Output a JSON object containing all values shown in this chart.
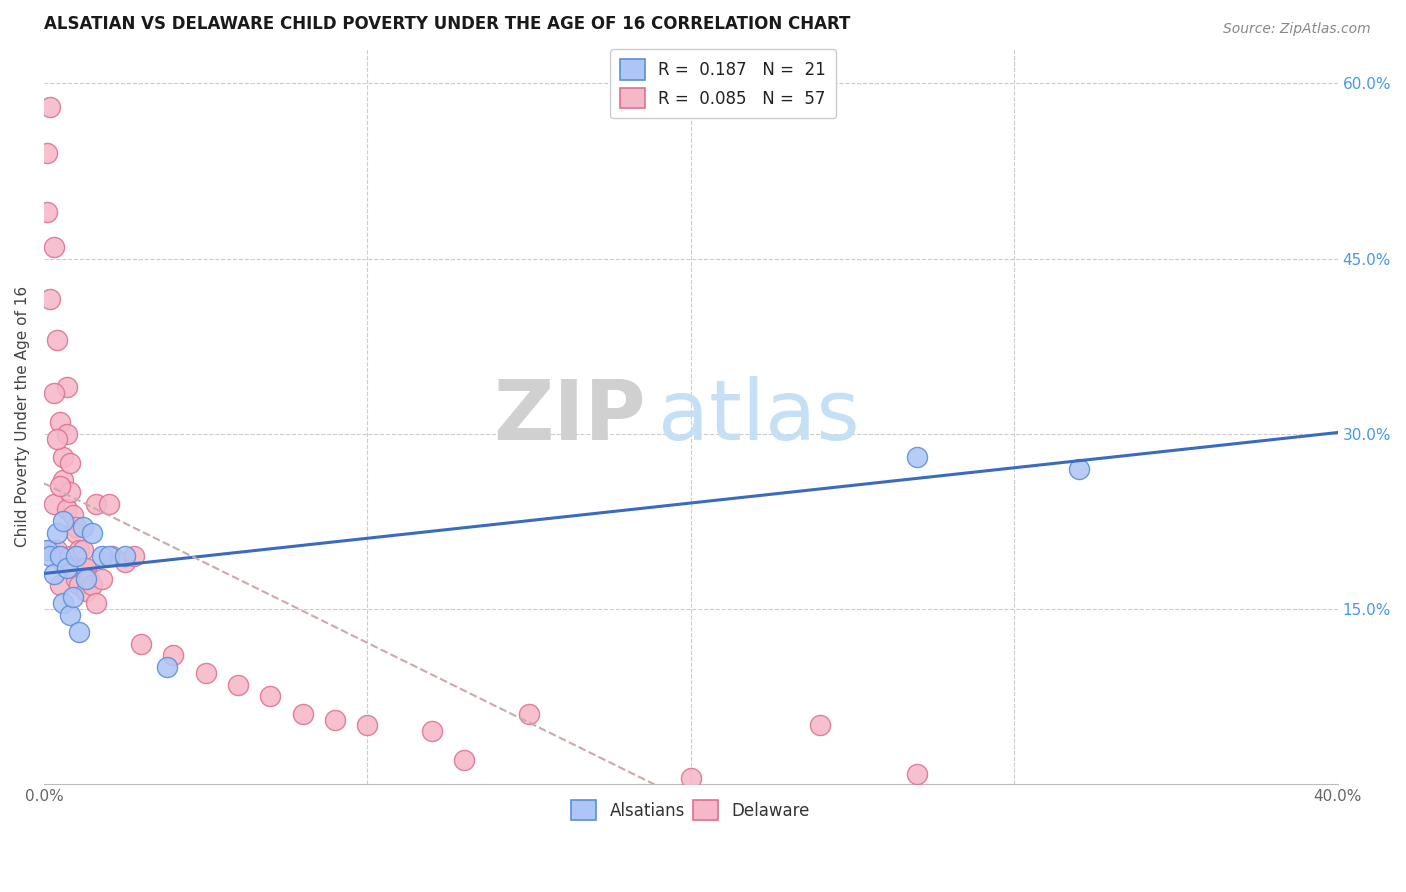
{
  "title": "ALSATIAN VS DELAWARE CHILD POVERTY UNDER THE AGE OF 16 CORRELATION CHART",
  "source": "Source: ZipAtlas.com",
  "ylabel": "Child Poverty Under the Age of 16",
  "xlim": [
    0.0,
    0.4
  ],
  "ylim": [
    0.0,
    0.63
  ],
  "background_color": "#ffffff",
  "grid_color": "#cccccc",
  "blue_fill": "#aec6f5",
  "blue_edge": "#5b8edb",
  "pink_fill": "#f5b8c8",
  "pink_edge": "#e07090",
  "trend_blue": "#3b6bbf",
  "trend_pink": "#e08098",
  "legend_r1": "R =  0.187   N =  21",
  "legend_r2": "R =  0.085   N =  57",
  "alsatian_x": [
    0.001,
    0.002,
    0.003,
    0.004,
    0.005,
    0.006,
    0.006,
    0.007,
    0.008,
    0.009,
    0.01,
    0.011,
    0.012,
    0.013,
    0.015,
    0.018,
    0.02,
    0.025,
    0.038,
    0.27,
    0.32
  ],
  "alsatian_y": [
    0.2,
    0.195,
    0.18,
    0.215,
    0.195,
    0.225,
    0.155,
    0.185,
    0.145,
    0.16,
    0.195,
    0.13,
    0.22,
    0.175,
    0.215,
    0.195,
    0.195,
    0.195,
    0.1,
    0.28,
    0.27
  ],
  "delaware_x": [
    0.001,
    0.001,
    0.002,
    0.002,
    0.003,
    0.003,
    0.004,
    0.004,
    0.005,
    0.005,
    0.006,
    0.006,
    0.006,
    0.007,
    0.007,
    0.007,
    0.008,
    0.008,
    0.008,
    0.009,
    0.009,
    0.01,
    0.01,
    0.01,
    0.011,
    0.011,
    0.012,
    0.012,
    0.013,
    0.013,
    0.014,
    0.015,
    0.016,
    0.016,
    0.018,
    0.02,
    0.021,
    0.025,
    0.028,
    0.03,
    0.04,
    0.05,
    0.06,
    0.07,
    0.08,
    0.09,
    0.1,
    0.12,
    0.13,
    0.15,
    0.2,
    0.24,
    0.27,
    0.002,
    0.003,
    0.004,
    0.005
  ],
  "delaware_y": [
    0.54,
    0.49,
    0.58,
    0.2,
    0.46,
    0.24,
    0.38,
    0.2,
    0.31,
    0.17,
    0.28,
    0.26,
    0.19,
    0.34,
    0.3,
    0.235,
    0.275,
    0.25,
    0.195,
    0.23,
    0.185,
    0.22,
    0.215,
    0.175,
    0.2,
    0.17,
    0.2,
    0.185,
    0.185,
    0.165,
    0.175,
    0.17,
    0.24,
    0.155,
    0.175,
    0.24,
    0.195,
    0.19,
    0.195,
    0.12,
    0.11,
    0.095,
    0.085,
    0.075,
    0.06,
    0.055,
    0.05,
    0.045,
    0.02,
    0.06,
    0.005,
    0.05,
    0.008,
    0.415,
    0.335,
    0.295,
    0.255
  ]
}
